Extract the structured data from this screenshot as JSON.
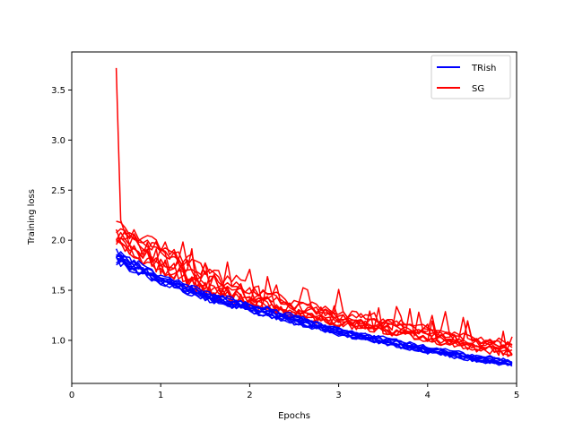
{
  "chart_data": {
    "type": "line",
    "title": "",
    "xlabel": "Epochs",
    "ylabel": "Training loss",
    "xlim": [
      0,
      5
    ],
    "ylim": [
      0.57,
      3.88
    ],
    "xticks": [
      0,
      1,
      2,
      3,
      4,
      5
    ],
    "yticks": [
      1.0,
      1.5,
      2.0,
      2.5,
      3.0,
      3.5
    ],
    "ytick_labels": [
      "1.0",
      "1.5",
      "2.0",
      "2.5",
      "3.0",
      "3.5"
    ],
    "grid": false,
    "legend_position": "top-right",
    "legend": [
      {
        "label": "TRish",
        "color": "#0000ff"
      },
      {
        "label": "SG",
        "color": "#ff0000"
      }
    ],
    "runs_per_method": 10,
    "x_start": 0.5,
    "x_end": 4.95,
    "points_per_run": 90,
    "series": [
      {
        "name": "TRish",
        "color": "#0000ff",
        "runs": 10,
        "x": [
          0.5,
          1.0,
          1.5,
          2.0,
          2.5,
          3.0,
          3.5,
          4.0,
          4.5,
          4.95
        ],
        "mean_y": [
          1.82,
          1.6,
          1.44,
          1.32,
          1.2,
          1.08,
          0.99,
          0.9,
          0.82,
          0.77
        ],
        "spread": [
          0.06,
          0.04,
          0.04,
          0.04,
          0.04,
          0.03,
          0.03,
          0.03,
          0.03,
          0.03
        ]
      },
      {
        "name": "SG",
        "color": "#ff0000",
        "runs": 10,
        "x": [
          0.5,
          1.0,
          1.5,
          2.0,
          2.5,
          3.0,
          3.5,
          4.0,
          4.5,
          4.95
        ],
        "mean_y": [
          2.05,
          1.85,
          1.6,
          1.45,
          1.32,
          1.23,
          1.15,
          1.06,
          0.98,
          0.92
        ],
        "spread": [
          0.08,
          0.12,
          0.1,
          0.08,
          0.06,
          0.06,
          0.05,
          0.05,
          0.05,
          0.05
        ],
        "peak": {
          "x": 0.5,
          "y": 3.72
        }
      }
    ]
  }
}
